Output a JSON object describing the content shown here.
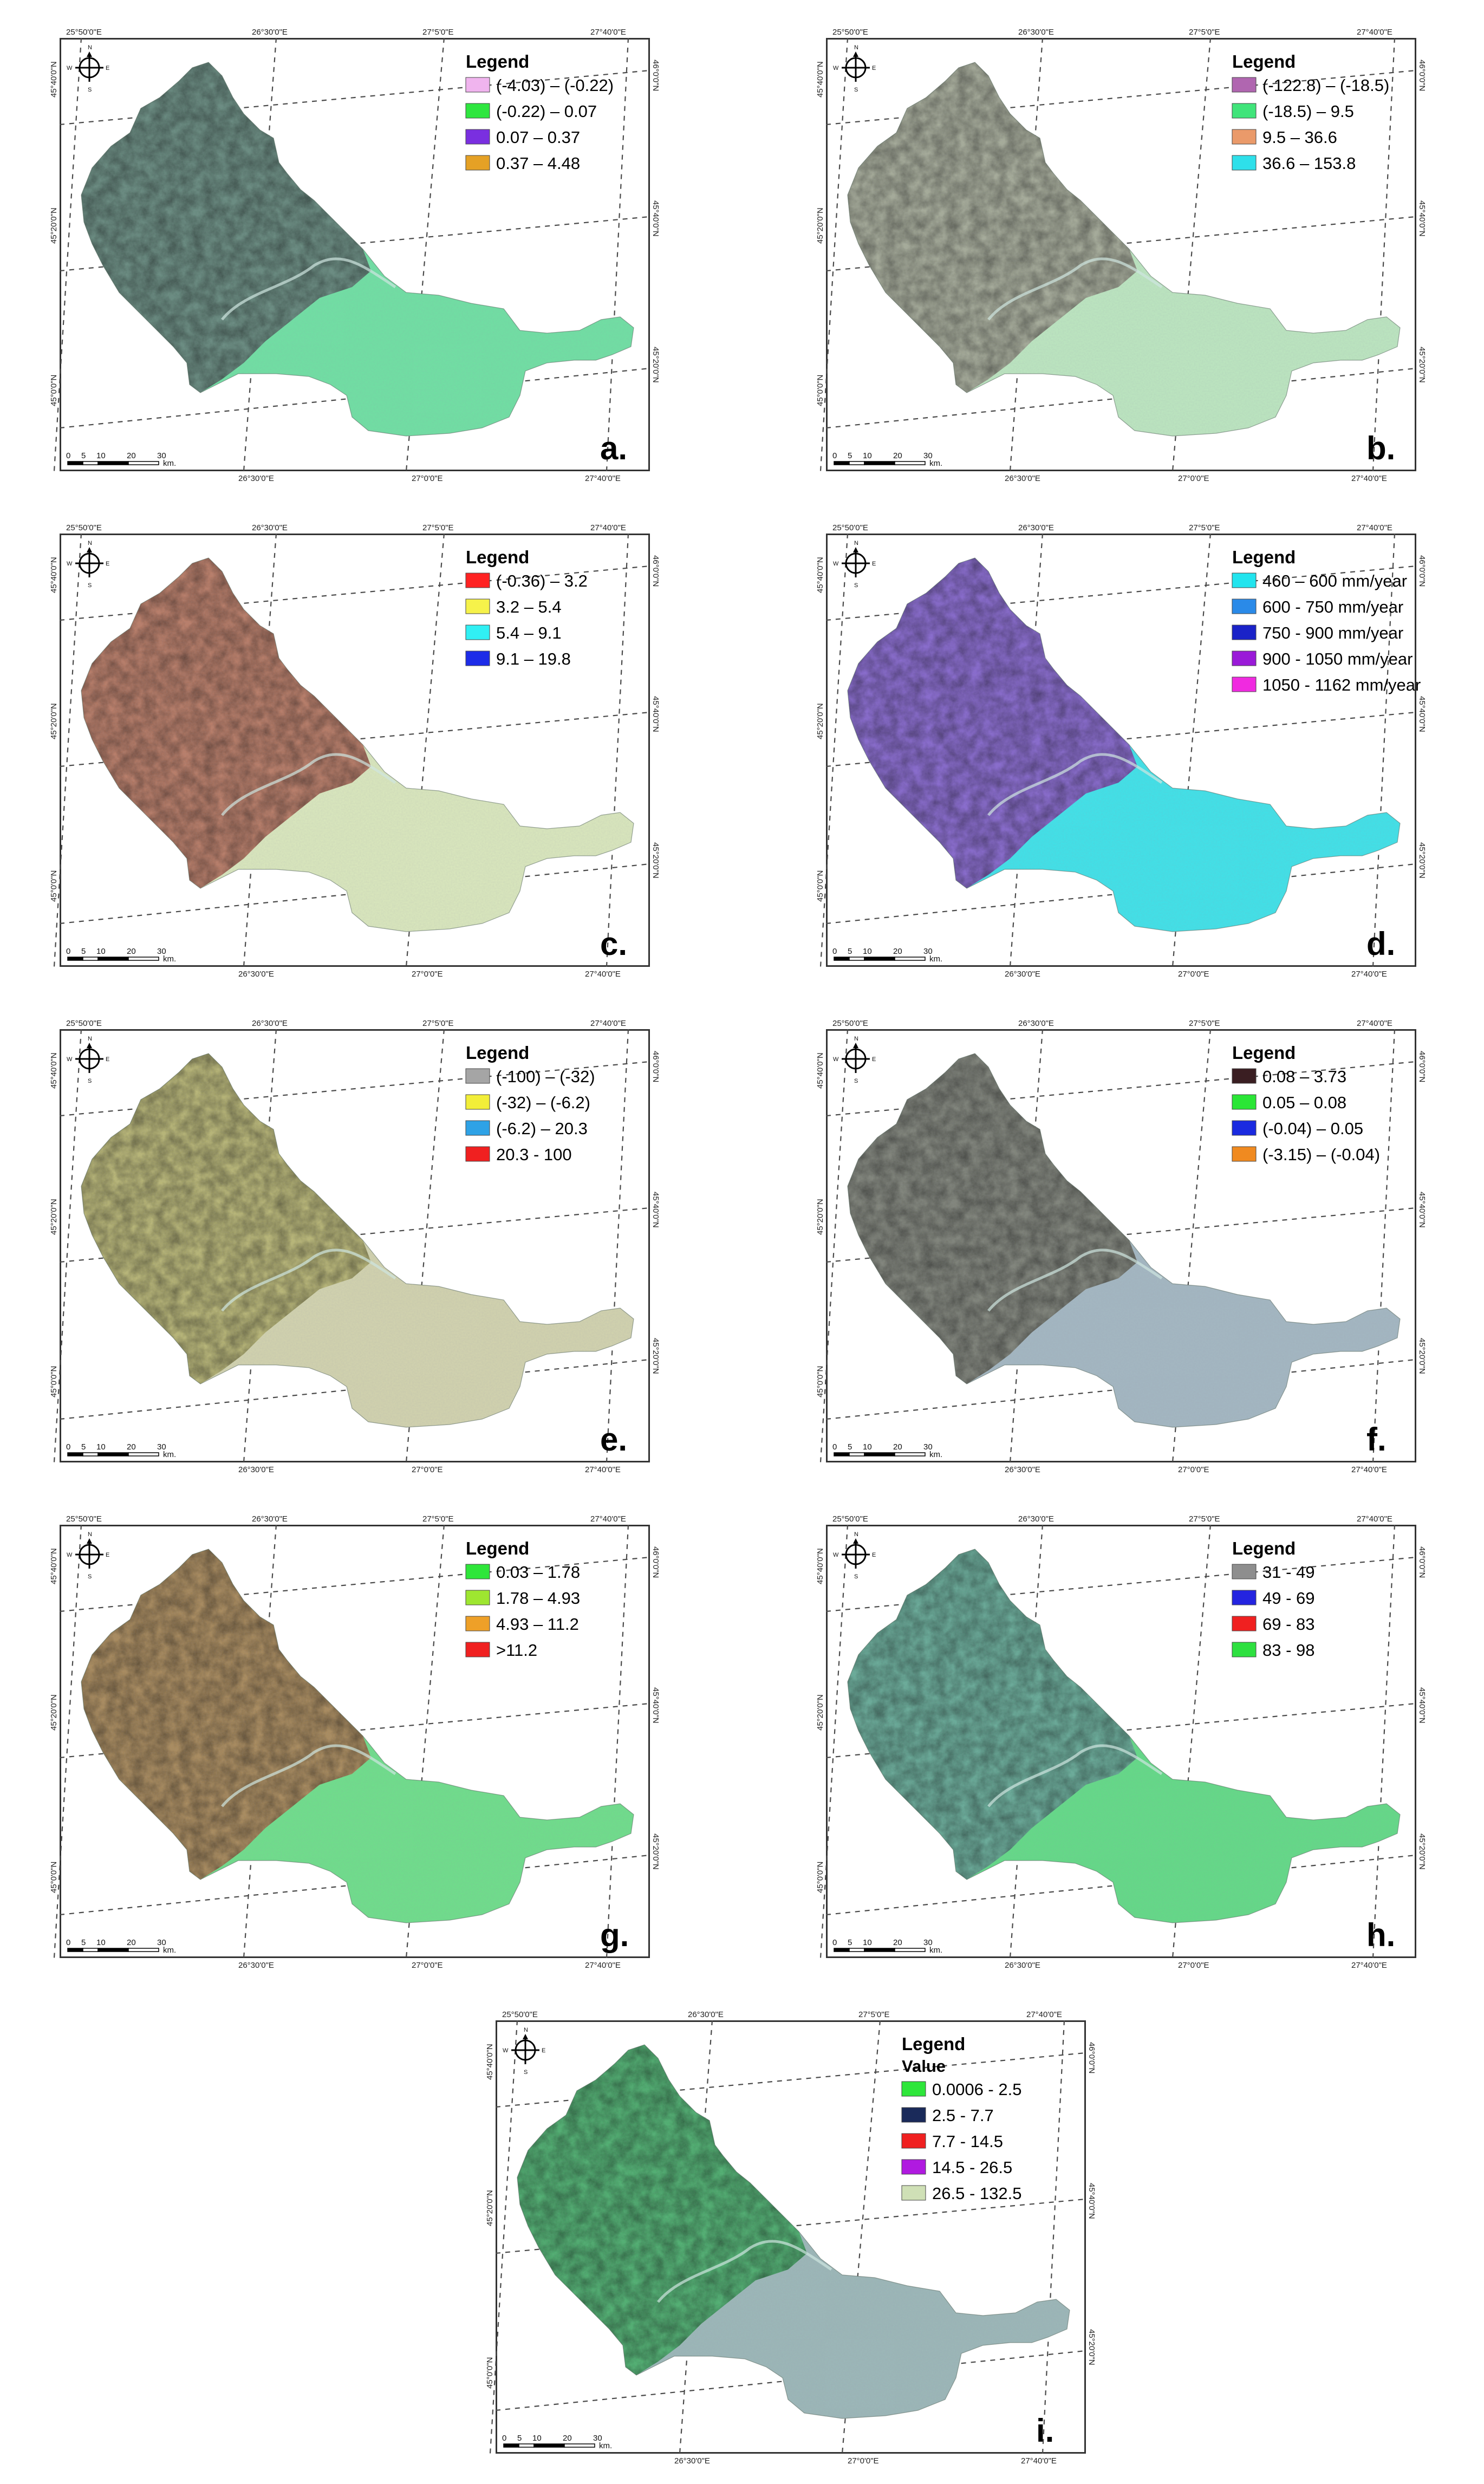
{
  "coordinate_labels": {
    "top": [
      "25°50'0\"E",
      "26°30'0\"E",
      "27°5'0\"E",
      "27°40'0\"E"
    ],
    "bottom": [
      "26°30'0\"E",
      "27°0'0\"E",
      "27°40'0\"E"
    ],
    "left": [
      "45°40'0\"N",
      "45°20'0\"N",
      "45°0'0\"N"
    ],
    "right": [
      "46°0'0\"N",
      "45°40'0\"N",
      "45°20'0\"N"
    ]
  },
  "scalebar": {
    "ticks": [
      "0",
      "5",
      "10",
      "20",
      "30"
    ],
    "unit": "km."
  },
  "north_arrow": {
    "n": "N",
    "s": "S",
    "e": "E",
    "w": "W"
  },
  "panels": [
    {
      "letter": "a.",
      "legend_title": "Legend",
      "legend_subtitle": "",
      "base_color": "#6f9c8c",
      "mountain_tint": "#5b6f66",
      "plain_color": "#6fe2a3",
      "legend": [
        {
          "label": "(-4.03) – (-0.22)",
          "color": "#f0b4ee"
        },
        {
          "label": "(-0.22) – 0.07",
          "color": "#2ee63f"
        },
        {
          "label": "0.07 – 0.37",
          "color": "#7a2fe0"
        },
        {
          "label": "0.37 – 4.48",
          "color": "#e5a125"
        }
      ]
    },
    {
      "letter": "b.",
      "legend_title": "Legend",
      "legend_subtitle": "",
      "base_color": "#b6bea6",
      "mountain_tint": "#8c8f82",
      "plain_color": "#bde8c0",
      "legend": [
        {
          "label": "(-122.8) – (-18.5)",
          "color": "#b066b0"
        },
        {
          "label": "(-18.5) – 9.5",
          "color": "#40e47a"
        },
        {
          "label": "9.5 – 36.6",
          "color": "#ea9a6a"
        },
        {
          "label": "36.6 – 153.8",
          "color": "#2ee0ea"
        }
      ]
    },
    {
      "letter": "c.",
      "legend_title": "Legend",
      "legend_subtitle": "",
      "base_color": "#c98a72",
      "mountain_tint": "#a06350",
      "plain_color": "#dbe9bd",
      "legend": [
        {
          "label": "(-0.36) – 3.2",
          "color": "#ff2222"
        },
        {
          "label": "3.2 – 5.4",
          "color": "#f6f24a"
        },
        {
          "label": "5.4 – 9.1",
          "color": "#30f0f4"
        },
        {
          "label": "9.1 – 19.8",
          "color": "#1d2ce8"
        }
      ]
    },
    {
      "letter": "d.",
      "legend_title": "Legend",
      "legend_subtitle": "",
      "base_color": "#7b72d6",
      "mountain_tint": "#a05ac4",
      "plain_color": "#3ee4ea",
      "legend": [
        {
          "label": "460 – 600 mm/year",
          "color": "#22e4ee"
        },
        {
          "label": "600 - 750 mm/year",
          "color": "#2a8ae8"
        },
        {
          "label": "750 - 900 mm/year",
          "color": "#1a22c8"
        },
        {
          "label": "900 - 1050  mm/year",
          "color": "#9a1ad8"
        },
        {
          "label": "1050 - 1162 mm/year",
          "color": "#f02ae0"
        }
      ]
    },
    {
      "letter": "e.",
      "legend_title": "Legend",
      "legend_subtitle": "",
      "base_color": "#c9c880",
      "mountain_tint": "#9d9a62",
      "plain_color": "#d3d4ae",
      "legend": [
        {
          "label": "(-100) – (-32)",
          "color": "#a5a5a5"
        },
        {
          "label": "(-32) – (-6.2)",
          "color": "#f2ee38"
        },
        {
          "label": "(-6.2) – 20.3",
          "color": "#2ea2e6"
        },
        {
          "label": "20.3 - 100",
          "color": "#f02020"
        }
      ]
    },
    {
      "letter": "f.",
      "legend_title": "Legend",
      "legend_subtitle": "",
      "base_color": "#8c9288",
      "mountain_tint": "#6b6a5e",
      "plain_color": "#a4b8c2",
      "legend": [
        {
          "label": "0.08 – 3.73",
          "color": "#3a1e22"
        },
        {
          "label": "0.05 – 0.08",
          "color": "#2ae636"
        },
        {
          "label": "(-0.04) – 0.05",
          "color": "#1a2ae0"
        },
        {
          "label": "(-3.15) – (-0.04)",
          "color": "#f08a20"
        }
      ]
    },
    {
      "letter": "g.",
      "legend_title": "Legend",
      "legend_subtitle": "",
      "base_color": "#b79a6a",
      "mountain_tint": "#93703e",
      "plain_color": "#6ee08a",
      "legend": [
        {
          "label": "0.03 – 1.78",
          "color": "#2ee63a"
        },
        {
          "label": "1.78 – 4.93",
          "color": "#9ee630"
        },
        {
          "label": "4.93 – 11.2",
          "color": "#eea028"
        },
        {
          "label": ">11.2",
          "color": "#f02020"
        }
      ]
    },
    {
      "letter": "h.",
      "legend_title": "Legend",
      "legend_subtitle": "",
      "base_color": "#5ed07a",
      "mountain_tint": "#7a6ed0",
      "plain_color": "#62dc86",
      "legend": [
        {
          "label": "31 - 49",
          "color": "#8e8e8e"
        },
        {
          "label": "49 - 69",
          "color": "#2424e0"
        },
        {
          "label": "69 - 83",
          "color": "#f02020"
        },
        {
          "label": "83 - 98",
          "color": "#2ee040"
        }
      ]
    },
    {
      "letter": "i.",
      "legend_title": "Legend",
      "legend_subtitle": "Value",
      "base_color": "#58c47a",
      "mountain_tint": "#3c8e5c",
      "plain_color": "#9cb8b8",
      "legend": [
        {
          "label": "0.0006 - 2.5",
          "color": "#2ee63a"
        },
        {
          "label": "2.5 - 7.7",
          "color": "#1a2a5a"
        },
        {
          "label": "7.7 - 14.5",
          "color": "#f02020"
        },
        {
          "label": "14.5 - 26.5",
          "color": "#b01ae0"
        },
        {
          "label": "26.5 - 132.5",
          "color": "#cfe0b6"
        }
      ]
    }
  ]
}
